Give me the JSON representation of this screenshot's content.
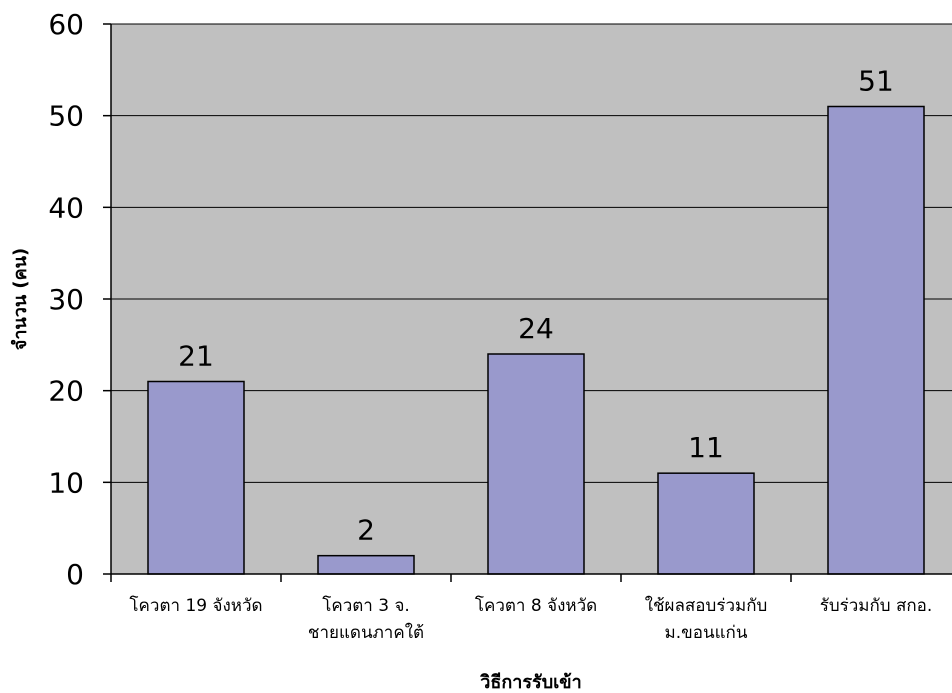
{
  "chart_data": {
    "type": "bar",
    "title": "",
    "xlabel": "วิธีการรับเข้า",
    "ylabel": "จำนวน (คน)",
    "categories": [
      [
        "โควตา 19 จังหวัด"
      ],
      [
        "โควตา 3 จ.",
        "ชายแดนภาคใต้"
      ],
      [
        "โควตา 8 จังหวัด"
      ],
      [
        "ใช้ผลสอบร่วมกับ",
        "ม.ขอนแก่น"
      ],
      [
        "รับร่วมกับ สกอ."
      ]
    ],
    "values": [
      21,
      2,
      24,
      11,
      51
    ],
    "ylim": [
      0,
      60
    ],
    "yticks": [
      0,
      10,
      20,
      30,
      40,
      50,
      60
    ],
    "grid": true,
    "legend": "none",
    "colors": {
      "bar_fill": "#9999cc",
      "bar_stroke": "#000000",
      "plot_background": "#c0c0c0",
      "gridline": "#000000"
    }
  }
}
